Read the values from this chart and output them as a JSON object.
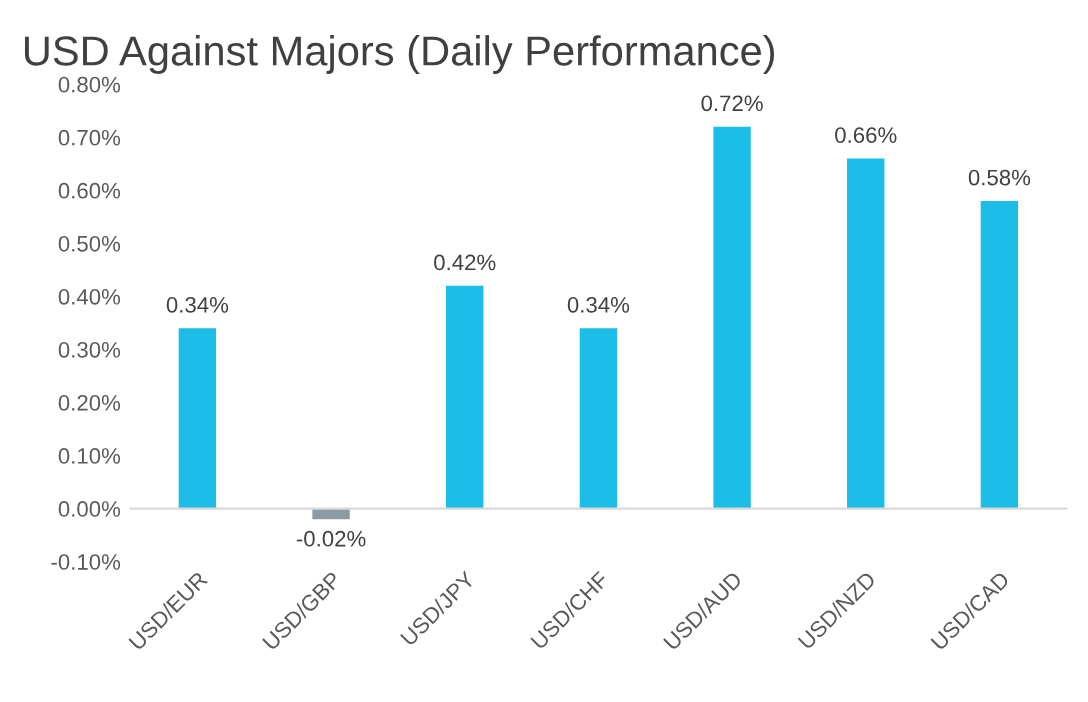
{
  "chart_data": {
    "type": "bar",
    "title": "USD Against Majors (Daily Performance)",
    "categories": [
      "USD/EUR",
      "USD/GBP",
      "USD/JPY",
      "USD/CHF",
      "USD/AUD",
      "USD/NZD",
      "USD/CAD"
    ],
    "values": [
      0.34,
      -0.02,
      0.42,
      0.34,
      0.72,
      0.66,
      0.58
    ],
    "colors": [
      "#1cbde6",
      "#8a9ba5",
      "#1cbde6",
      "#1cbde6",
      "#1cbde6",
      "#1cbde6",
      "#1cbde6"
    ],
    "value_labels": [
      "0.34%",
      "-0.02%",
      "0.42%",
      "0.34%",
      "0.72%",
      "0.66%",
      "0.58%"
    ],
    "ylim": [
      -0.1,
      0.8
    ],
    "yticks": [
      {
        "value": -0.1,
        "label": "-0.10%"
      },
      {
        "value": 0,
        "label": "0.00%"
      },
      {
        "value": 0.1,
        "label": "0.10%"
      },
      {
        "value": 0.2,
        "label": "0.20%"
      },
      {
        "value": 0.3,
        "label": "0.30%"
      },
      {
        "value": 0.4,
        "label": "0.40%"
      },
      {
        "value": 0.5,
        "label": "0.50%"
      },
      {
        "value": 0.6,
        "label": "0.60%"
      },
      {
        "value": 0.7,
        "label": "0.70%"
      },
      {
        "value": 0.8,
        "label": "0.80%"
      }
    ],
    "legend": false
  }
}
